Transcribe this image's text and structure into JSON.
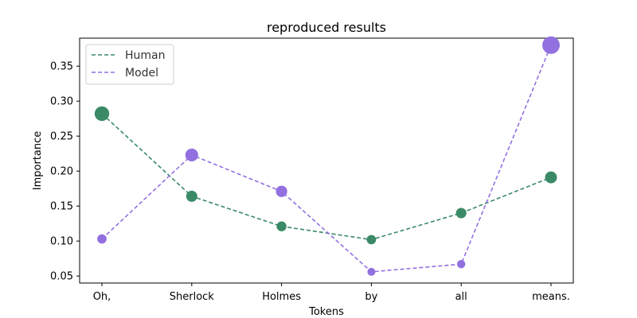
{
  "chart_data": {
    "type": "line",
    "title": "reproduced results",
    "xlabel": "Tokens",
    "ylabel": "Importance",
    "categories": [
      "Oh,",
      "Sherlock",
      "Holmes",
      "by",
      "all",
      "means."
    ],
    "ylim": [
      0.04,
      0.39
    ],
    "yticks": [
      0.05,
      0.1,
      0.15,
      0.2,
      0.25,
      0.3,
      0.35
    ],
    "grid": false,
    "legend_position": "top-left",
    "series": [
      {
        "name": "Human",
        "color": "#3a8a67",
        "line_style": "dashed",
        "marker_sizes_by_value": true,
        "values": [
          0.282,
          0.164,
          0.121,
          0.102,
          0.14,
          0.191
        ]
      },
      {
        "name": "Model",
        "color": "#9370e0",
        "line_style": "dashed",
        "marker_sizes_by_value": true,
        "values": [
          0.103,
          0.223,
          0.171,
          0.056,
          0.067,
          0.38
        ]
      }
    ]
  }
}
